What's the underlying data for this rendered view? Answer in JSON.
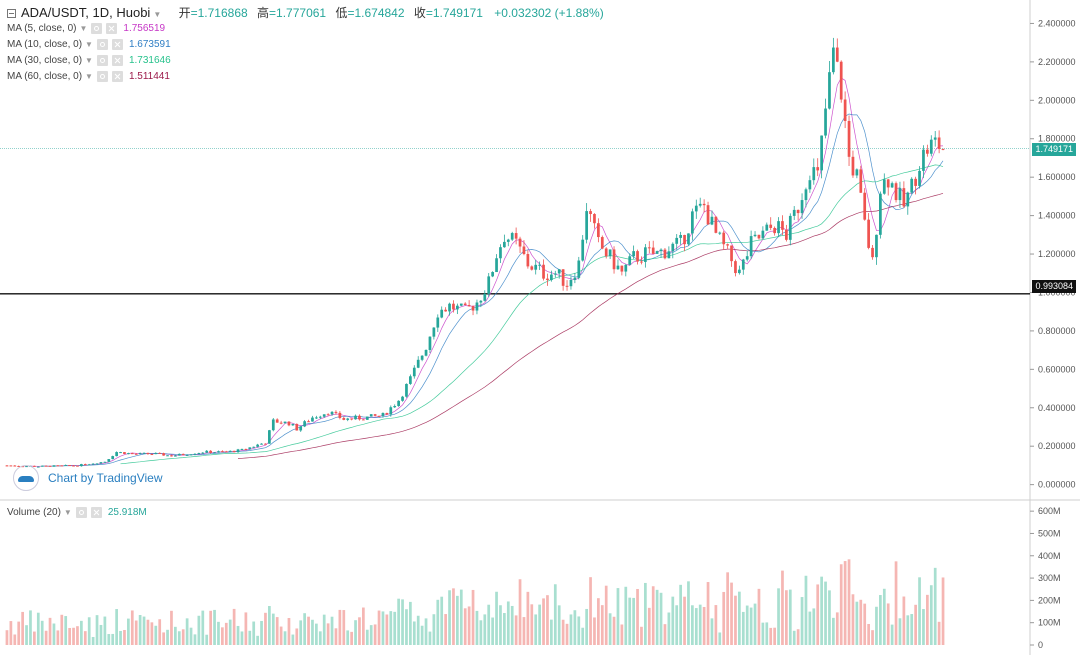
{
  "header": {
    "symbol": "ADA/USDT, 1D, Huobi",
    "open_label": "开",
    "open": "=1.716868",
    "high_label": "高",
    "high": "=1.777061",
    "low_label": "低",
    "low": "=1.674842",
    "close_label": "收",
    "close": "=1.749171",
    "change": "+0.032302 (+1.88%)"
  },
  "indicators": [
    {
      "label": "MA (5, close, 0)",
      "value": "1.756519",
      "color": "#c637c6"
    },
    {
      "label": "MA (10, close, 0)",
      "value": "1.673591",
      "color": "#2f7ec4"
    },
    {
      "label": "MA (30, close, 0)",
      "value": "1.731646",
      "color": "#26c28c"
    },
    {
      "label": "MA (60, close, 0)",
      "value": "1.511441",
      "color": "#9c1a4a"
    }
  ],
  "volume": {
    "label": "Volume (20)",
    "value": "25.918M"
  },
  "watermark": {
    "text": "Chart by TradingView"
  },
  "price_tags": {
    "current": "1.749171",
    "line": "0.993084"
  },
  "colors": {
    "up": "#26a69a",
    "down": "#ef5350",
    "up_vol": "#a8dfd0",
    "down_vol": "#f5b6b3"
  },
  "chart_data": {
    "type": "candlestick",
    "price_axis": {
      "ticks": [
        "2.400000",
        "2.200000",
        "2.000000",
        "1.800000",
        "1.600000",
        "1.400000",
        "1.200000",
        "1.000000",
        "0.800000",
        "0.600000",
        "0.400000",
        "0.200000",
        "0.000000"
      ],
      "range": [
        -0.08,
        2.47
      ]
    },
    "volume_axis": {
      "ticks": [
        "600M",
        "500M",
        "400M",
        "300M",
        "200M",
        "100M",
        "0"
      ],
      "range": [
        0,
        650
      ]
    },
    "horizontal_line": 0.993084,
    "current_price": 1.749171,
    "price_path": [
      [
        0,
        0.1
      ],
      [
        8,
        0.095
      ],
      [
        18,
        0.1
      ],
      [
        25,
        0.12
      ],
      [
        28,
        0.17
      ],
      [
        32,
        0.16
      ],
      [
        38,
        0.16
      ],
      [
        42,
        0.15
      ],
      [
        50,
        0.17
      ],
      [
        56,
        0.17
      ],
      [
        60,
        0.18
      ],
      [
        66,
        0.22
      ],
      [
        68,
        0.33
      ],
      [
        72,
        0.32
      ],
      [
        74,
        0.29
      ],
      [
        78,
        0.35
      ],
      [
        82,
        0.38
      ],
      [
        86,
        0.34
      ],
      [
        92,
        0.35
      ],
      [
        96,
        0.36
      ],
      [
        100,
        0.44
      ],
      [
        103,
        0.55
      ],
      [
        107,
        0.72
      ],
      [
        110,
        0.9
      ],
      [
        113,
        0.93
      ],
      [
        117,
        0.9
      ],
      [
        120,
        0.95
      ],
      [
        123,
        1.05
      ],
      [
        125,
        1.2
      ],
      [
        127,
        1.3
      ],
      [
        130,
        1.25
      ],
      [
        133,
        1.15
      ],
      [
        137,
        1.1
      ],
      [
        140,
        1.1
      ],
      [
        143,
        1.05
      ],
      [
        146,
        1.15
      ],
      [
        148,
        1.45
      ],
      [
        151,
        1.25
      ],
      [
        154,
        1.18
      ],
      [
        157,
        1.1
      ],
      [
        160,
        1.18
      ],
      [
        163,
        1.2
      ],
      [
        166,
        1.2
      ],
      [
        169,
        1.23
      ],
      [
        172,
        1.25
      ],
      [
        175,
        1.4
      ],
      [
        178,
        1.45
      ],
      [
        181,
        1.3
      ],
      [
        184,
        1.2
      ],
      [
        187,
        1.1
      ],
      [
        190,
        1.25
      ],
      [
        193,
        1.3
      ],
      [
        196,
        1.35
      ],
      [
        199,
        1.3
      ],
      [
        202,
        1.45
      ],
      [
        205,
        1.65
      ],
      [
        207,
        1.6
      ],
      [
        209,
        1.95
      ],
      [
        211,
        2.25
      ],
      [
        213,
        2.05
      ],
      [
        215,
        1.7
      ],
      [
        217,
        1.6
      ],
      [
        219,
        1.35
      ],
      [
        221,
        1.15
      ],
      [
        223,
        1.55
      ],
      [
        225,
        1.6
      ],
      [
        227,
        1.52
      ],
      [
        229,
        1.45
      ],
      [
        231,
        1.55
      ],
      [
        233,
        1.68
      ],
      [
        235,
        1.75
      ],
      [
        237,
        1.78
      ],
      [
        239,
        1.75
      ]
    ],
    "ma_series": [
      "MA 5",
      "MA 10",
      "MA 30",
      "MA 60"
    ]
  }
}
